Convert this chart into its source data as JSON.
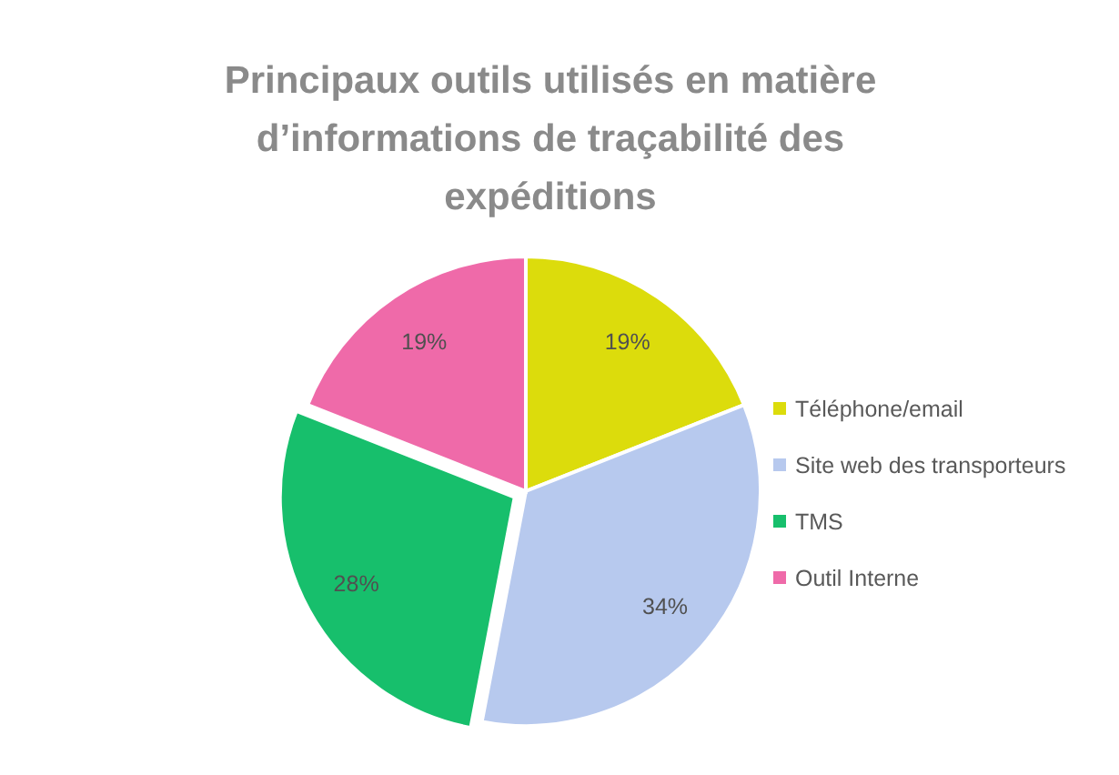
{
  "chart_data": {
    "type": "pie",
    "title": "Principaux outils utilisés en matière d’informations de traçabilité des expéditions",
    "categories": [
      "Téléphone/email",
      "Site web des transporteurs",
      "TMS",
      "Outil Interne"
    ],
    "values": [
      19,
      34,
      28,
      19
    ],
    "colors": [
      "#dcdc0c",
      "#b7c9ee",
      "#17bf6c",
      "#ef6aa9"
    ],
    "value_labels": [
      "19%",
      "34%",
      "28%",
      "19%"
    ],
    "legend": "right"
  }
}
